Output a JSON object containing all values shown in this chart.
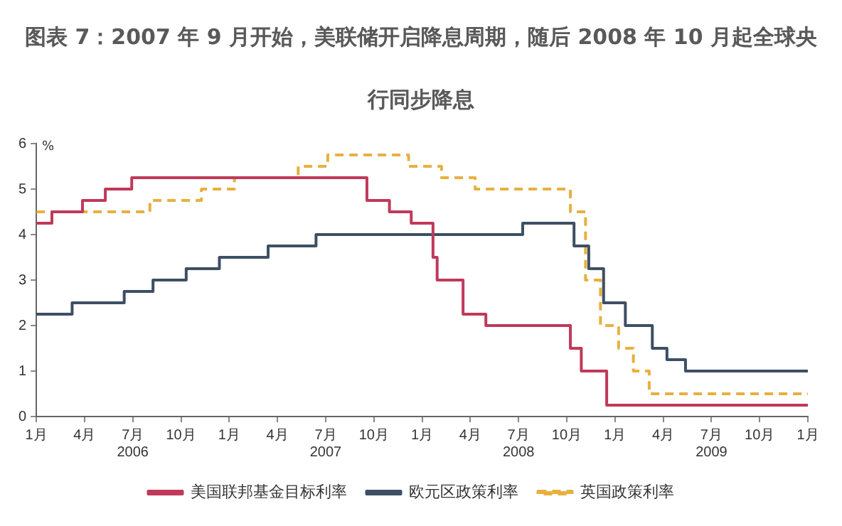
{
  "chart_data": {
    "type": "step",
    "title": "图表 7：2007 年 9 月开始，美联储开启降息周期，随后 2008 年 10 月起全球央行同步降息",
    "ylabel": "%",
    "xlim": [
      "2006-01-01",
      "2010-01-01"
    ],
    "xticks": [
      {
        "value": "2006-01-01",
        "label": "1月"
      },
      {
        "value": "2006-04-01",
        "label": "4月"
      },
      {
        "value": "2006-07-01",
        "label": "7月\n2006"
      },
      {
        "value": "2006-10-01",
        "label": "10月"
      },
      {
        "value": "2007-01-01",
        "label": "1月"
      },
      {
        "value": "2007-04-01",
        "label": "4月"
      },
      {
        "value": "2007-07-01",
        "label": "7月\n2007"
      },
      {
        "value": "2007-10-01",
        "label": "10月"
      },
      {
        "value": "2008-01-01",
        "label": "1月"
      },
      {
        "value": "2008-04-01",
        "label": "4月"
      },
      {
        "value": "2008-07-01",
        "label": "7月\n2008"
      },
      {
        "value": "2008-10-01",
        "label": "10月"
      },
      {
        "value": "2009-01-01",
        "label": "1月"
      },
      {
        "value": "2009-04-01",
        "label": "4月"
      },
      {
        "value": "2009-07-01",
        "label": "7月\n2009"
      },
      {
        "value": "2009-10-01",
        "label": "10月"
      },
      {
        "value": "2010-01-01",
        "label": "1月"
      }
    ],
    "ylim": [
      0,
      6
    ],
    "yticks": [
      0,
      1,
      2,
      3,
      4,
      5,
      6
    ],
    "grid": false,
    "legend": "bottom",
    "series": [
      {
        "name": "美国联邦基金目标利率",
        "color": "#c0395a",
        "line_style": "solid",
        "x": [
          "2006-01-01",
          "2006-01-31",
          "2006-03-28",
          "2006-05-10",
          "2006-06-29",
          "2007-09-18",
          "2007-10-31",
          "2007-12-11",
          "2008-01-22",
          "2008-01-30",
          "2008-03-18",
          "2008-04-30",
          "2008-10-08",
          "2008-10-29",
          "2008-12-16",
          "2010-01-01"
        ],
        "values": [
          4.25,
          4.5,
          4.75,
          5.0,
          5.25,
          4.75,
          4.5,
          4.25,
          3.5,
          3.0,
          2.25,
          2.0,
          1.5,
          1.0,
          0.25,
          0.25
        ]
      },
      {
        "name": "欧元区政策利率",
        "color": "#3d4f63",
        "line_style": "solid",
        "x": [
          "2006-01-01",
          "2006-03-08",
          "2006-06-15",
          "2006-08-09",
          "2006-10-11",
          "2006-12-13",
          "2007-03-14",
          "2007-06-13",
          "2008-07-09",
          "2008-10-15",
          "2008-11-12",
          "2008-12-10",
          "2009-01-21",
          "2009-03-11",
          "2009-04-08",
          "2009-05-13",
          "2010-01-01"
        ],
        "values": [
          2.25,
          2.5,
          2.75,
          3.0,
          3.25,
          3.5,
          3.75,
          4.0,
          4.25,
          3.75,
          3.25,
          2.5,
          2.0,
          1.5,
          1.25,
          1.0,
          1.0
        ]
      },
      {
        "name": "英国政策利率",
        "color": "#e8b040",
        "line_style": "dashed",
        "x": [
          "2006-01-01",
          "2006-08-03",
          "2006-11-09",
          "2007-01-11",
          "2007-05-10",
          "2007-07-05",
          "2007-12-06",
          "2008-02-07",
          "2008-04-10",
          "2008-10-08",
          "2008-11-06",
          "2008-12-04",
          "2009-01-08",
          "2009-02-05",
          "2009-03-05",
          "2010-01-01"
        ],
        "values": [
          4.5,
          4.75,
          5.0,
          5.25,
          5.5,
          5.75,
          5.5,
          5.25,
          5.0,
          4.5,
          3.0,
          2.0,
          1.5,
          1.0,
          0.5,
          0.5
        ]
      }
    ]
  }
}
